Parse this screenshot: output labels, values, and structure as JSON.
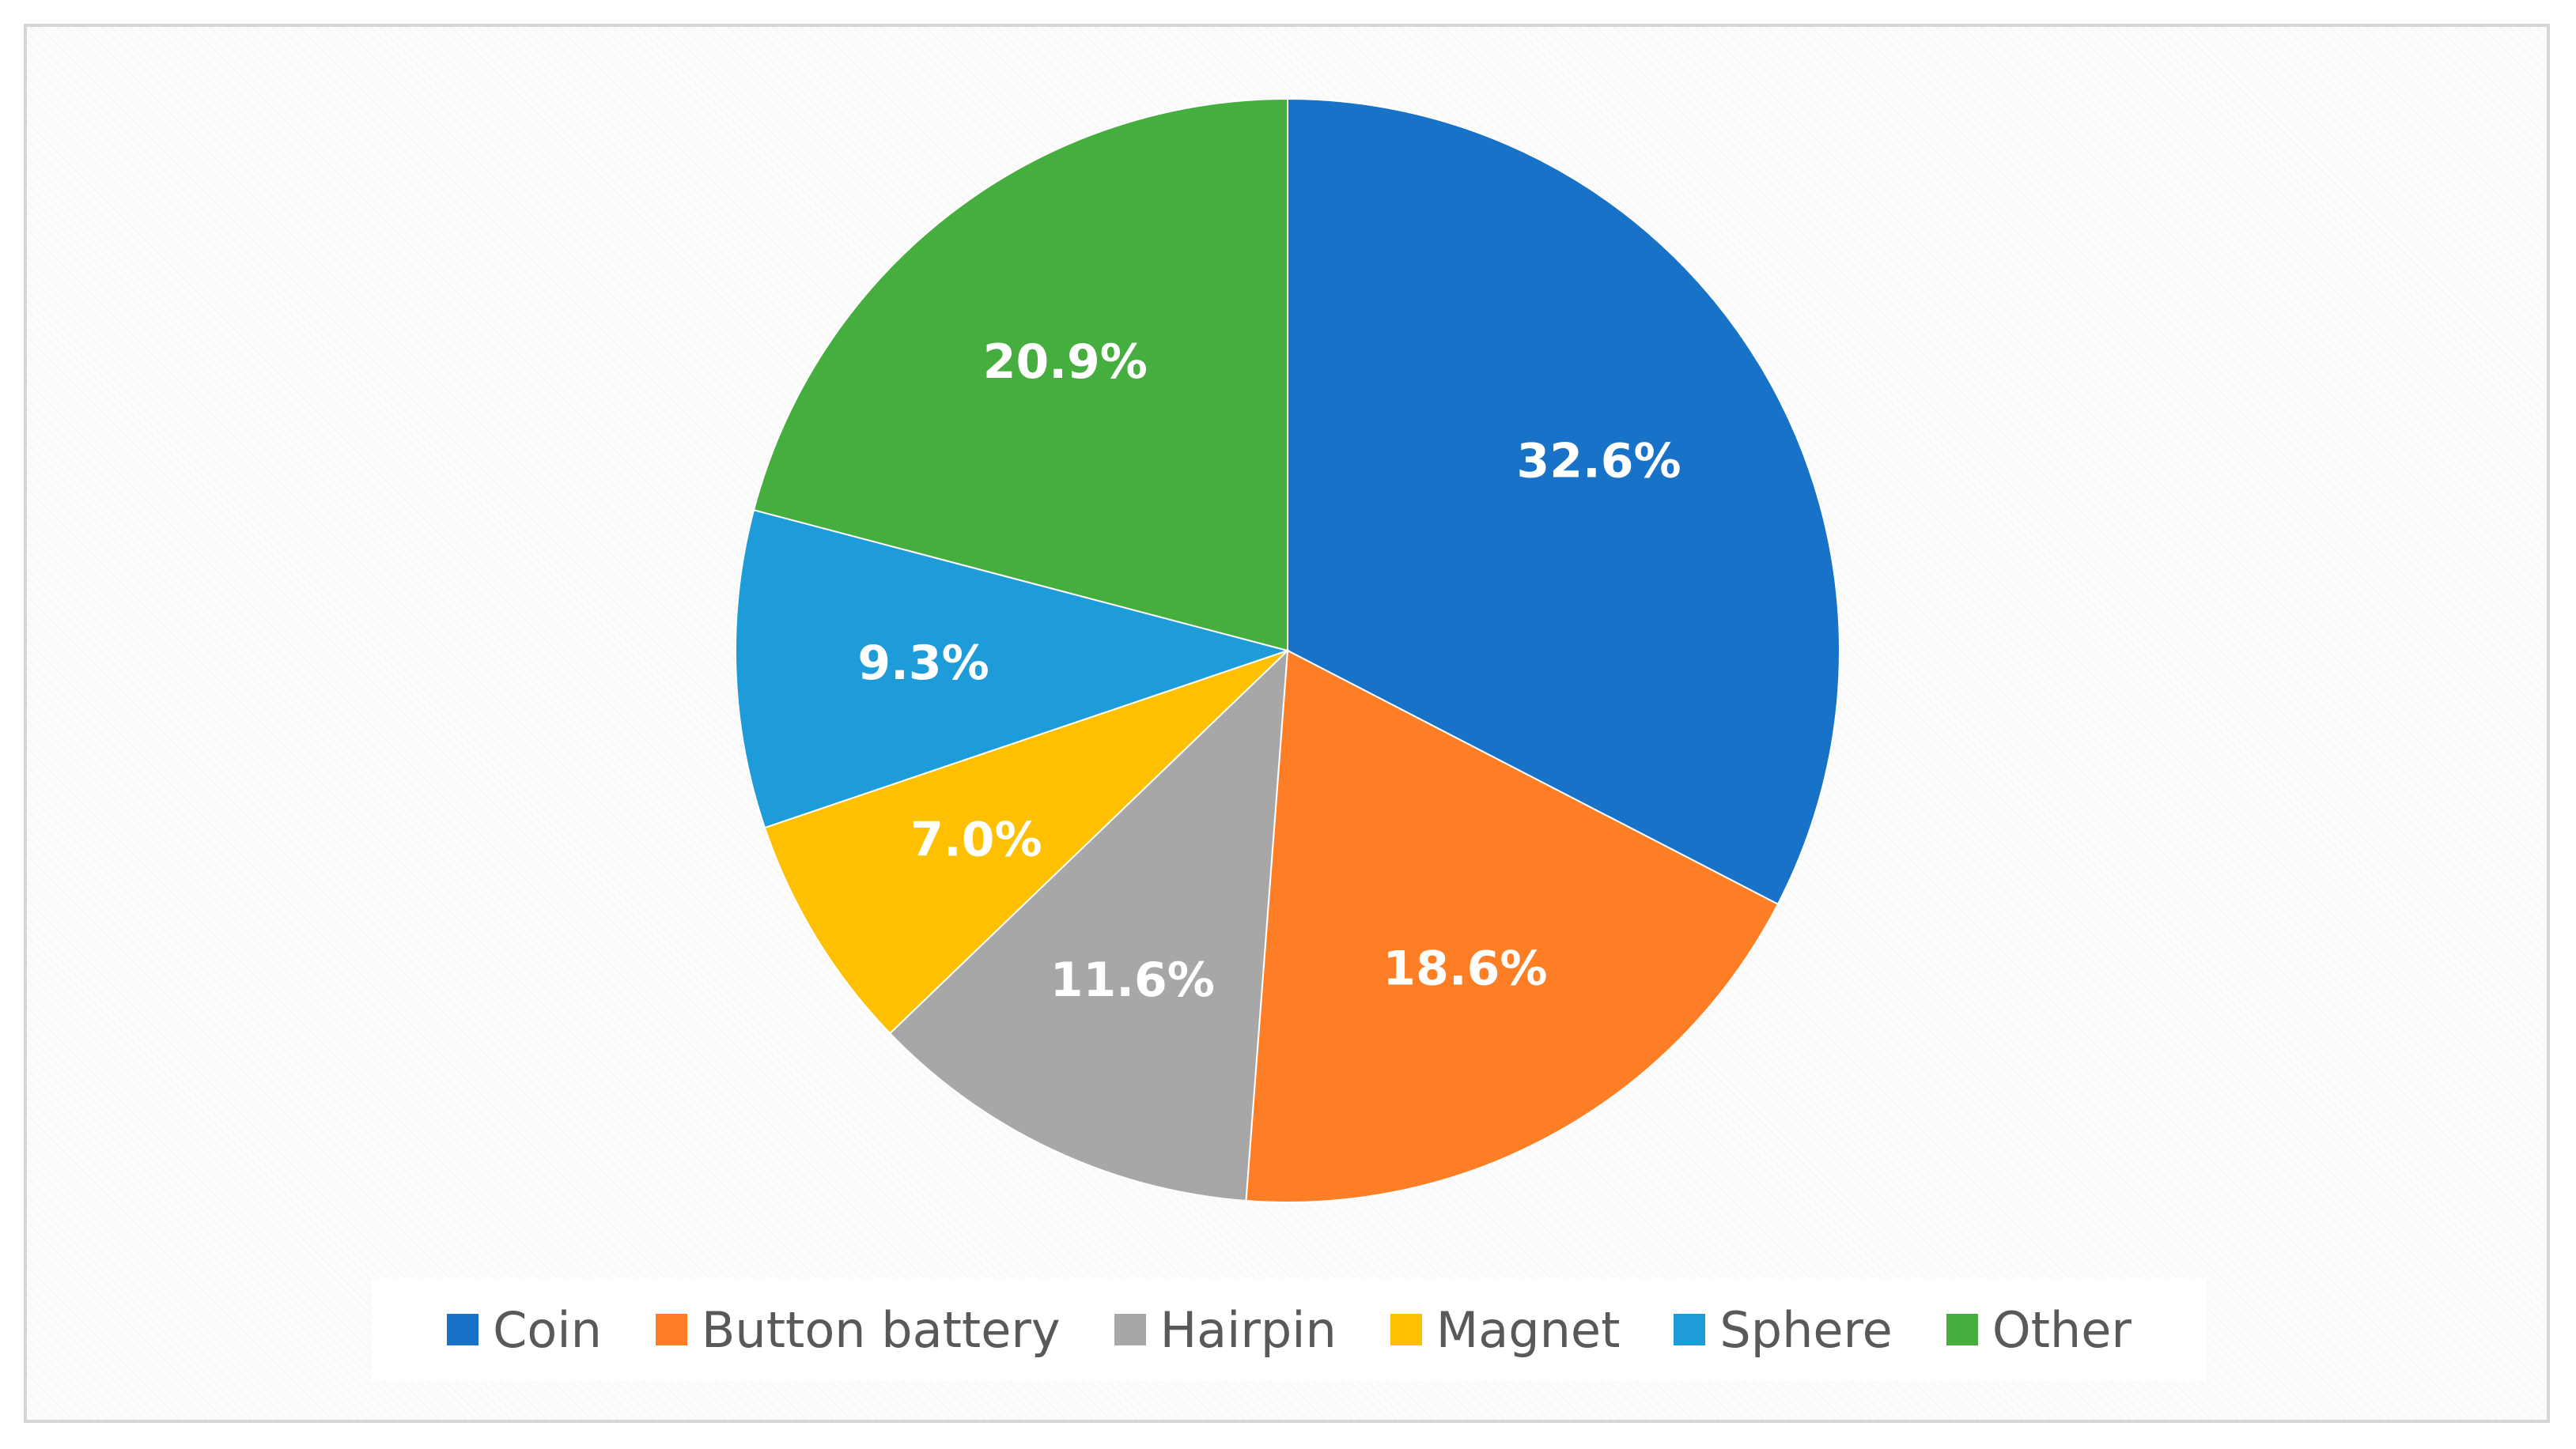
{
  "chart_data": {
    "type": "pie",
    "title": "",
    "slices": [
      {
        "label": "Coin",
        "value": 32.6,
        "value_label": "32.6%",
        "color": "#1872c8"
      },
      {
        "label": "Button battery",
        "value": 18.6,
        "value_label": "18.6%",
        "color": "#fd7e24"
      },
      {
        "label": "Hairpin",
        "value": 11.6,
        "value_label": "11.6%",
        "color": "#a7a7a7"
      },
      {
        "label": "Magnet",
        "value": 7.0,
        "value_label": "7.0%",
        "color": "#fec000"
      },
      {
        "label": "Sphere",
        "value": 9.3,
        "value_label": "9.3%",
        "color": "#1e9bd9"
      },
      {
        "label": "Other",
        "value": 20.9,
        "value_label": "20.9%",
        "color": "#45ae3f"
      }
    ],
    "start_angle": "12 o'clock",
    "direction": "clockwise",
    "legend_position": "bottom"
  }
}
